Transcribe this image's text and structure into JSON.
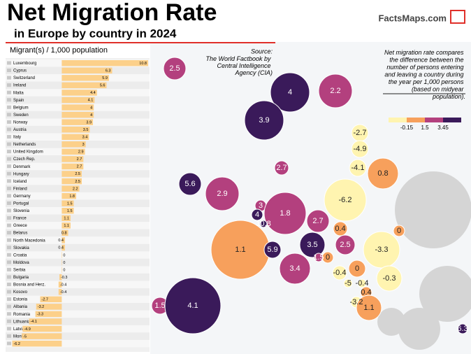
{
  "chart_data": {
    "type": "bar",
    "title": "Net Migration Rate",
    "subtitle": "in Europe by country in 2024",
    "axis_label": "Migrant(s) / 1,000 population",
    "brand": "FactsMaps.com",
    "source_title": "Source:",
    "source": "The World Factbook by Central Intelligence Agency (CIA)",
    "description": "Net migration rate compares the difference between the number of persons entering and leaving a country during the year per 1,000 persons (based on midyear population).",
    "categories": [
      "Luxembourg",
      "Cyprus",
      "Switzerland",
      "Ireland",
      "Malta",
      "Spain",
      "Belgium",
      "Sweden",
      "Norway",
      "Austria",
      "Italy",
      "Netherlands",
      "United Kingdom",
      "Czech Rep.",
      "Denmark",
      "Hungary",
      "Iceland",
      "Finland",
      "Germany",
      "Portugal",
      "Slovenia",
      "France",
      "Greece",
      "Belarus",
      "North Macedonia",
      "Slovakia",
      "Croatia",
      "Moldova",
      "Serbia",
      "Bulgaria",
      "Bosnia and Herz.",
      "Kosovo",
      "Estonia",
      "Albania",
      "Romania",
      "Lithuania",
      "Latvia",
      "Montenegro",
      "Poland"
    ],
    "values": [
      10.8,
      6.3,
      5.9,
      5.6,
      4.4,
      4.1,
      4,
      4,
      3.9,
      3.5,
      3.4,
      3,
      2.9,
      2.7,
      2.7,
      2.5,
      2.5,
      2.2,
      1.8,
      1.5,
      1.5,
      1.1,
      1.1,
      0.8,
      0.4,
      0.4,
      0,
      0,
      0,
      -0.3,
      -0.4,
      -0.4,
      -2.7,
      -3.2,
      -3.3,
      -4.1,
      -4.9,
      -5,
      -6.2
    ],
    "color": "#fcd08a",
    "xlim": [
      -6.5,
      10.8
    ],
    "legend_breaks": [
      -0.15,
      1.5,
      3.45
    ],
    "legend_colors": [
      "#fff4b0",
      "#f7a05c",
      "#b3407e",
      "#3a1a5a"
    ],
    "map_values": [
      2.5,
      4,
      2.2,
      3.9,
      -2.7,
      -4.9,
      -4.1,
      0.8,
      2.7,
      5.6,
      2.9,
      -6.2,
      3,
      1.8,
      4,
      10.8,
      2.7,
      0.4,
      0,
      1.1,
      5.9,
      3.5,
      2.5,
      -3.3,
      1.5,
      0,
      -0.4,
      3.4,
      0,
      -5,
      -0.4,
      -0.3,
      0.4,
      -3.2,
      1.1,
      1.5,
      4.1,
      6.3
    ]
  }
}
